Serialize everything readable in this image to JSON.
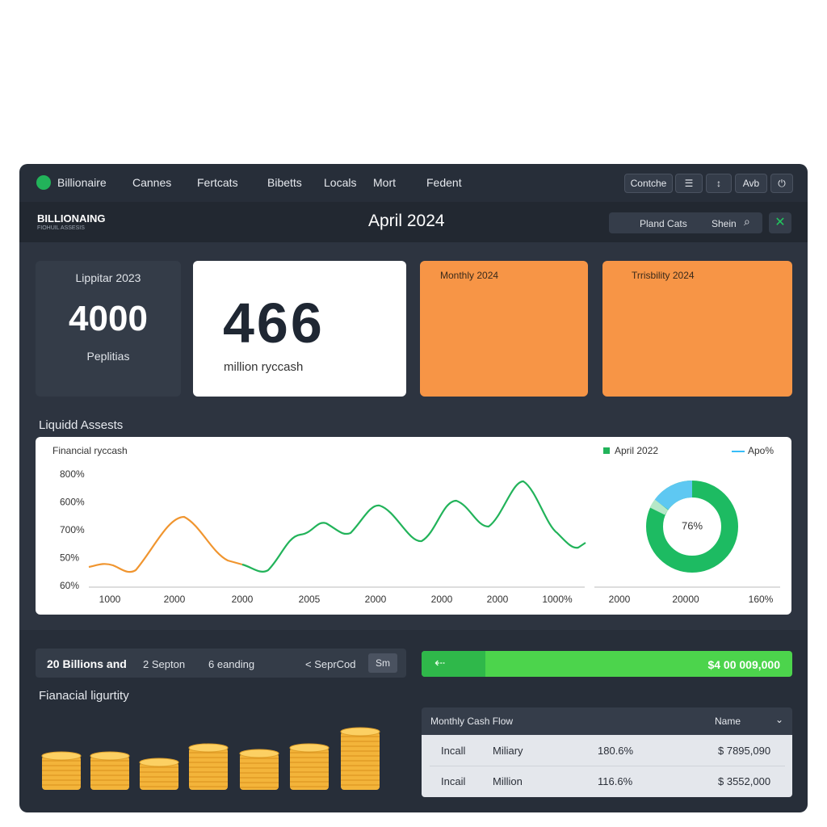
{
  "nav": {
    "brand": "Billionaire",
    "items": [
      "Cannes",
      "Fertcats",
      "Bibetts",
      "Locals",
      "Mort",
      "Fedent"
    ],
    "buttons": [
      "Contche",
      "Avb"
    ]
  },
  "header": {
    "logo": "BILLIONAING",
    "logo_sub": "FIOHUIL ASSESIS",
    "title": "April 2024",
    "search": [
      "Pland Cats",
      "Shein"
    ]
  },
  "cards": [
    {
      "label": "Lippitar 2023",
      "value": "4000",
      "sub": "Peplitias"
    },
    {
      "value": "466",
      "sub": "million ryccash"
    },
    {
      "label": "Monthly 2024"
    },
    {
      "label": "Trrisbility 2024"
    }
  ],
  "section1": "Liquidd Assests",
  "chart": {
    "title": "Financial ryccash",
    "legend": [
      "April 2022",
      "Apo%"
    ],
    "y_labels": [
      "800%",
      "600%",
      "700%",
      "50%",
      "60%"
    ],
    "x_labels": [
      "1000",
      "2000",
      "2000",
      "2005",
      "2000",
      "2000",
      "2000",
      "1000%"
    ],
    "donut_label": "76%",
    "donut_x_labels": [
      "2000",
      "20000",
      "160%"
    ]
  },
  "toolbar": {
    "items": [
      "20 Billions and",
      "2 Septon",
      "6 eanding",
      "< SeprCod",
      "Sm"
    ],
    "progress": "$4 00 009,000"
  },
  "section2": "Fianacial ligurtity",
  "table": {
    "header": [
      "Monthly Cash Flow",
      "Name"
    ],
    "rows": [
      [
        "Incall",
        "Miliary",
        "180.6%",
        "$ 7895,090"
      ],
      [
        "Incail",
        "Million",
        "116.6%",
        "$ 3552,000"
      ]
    ]
  }
}
